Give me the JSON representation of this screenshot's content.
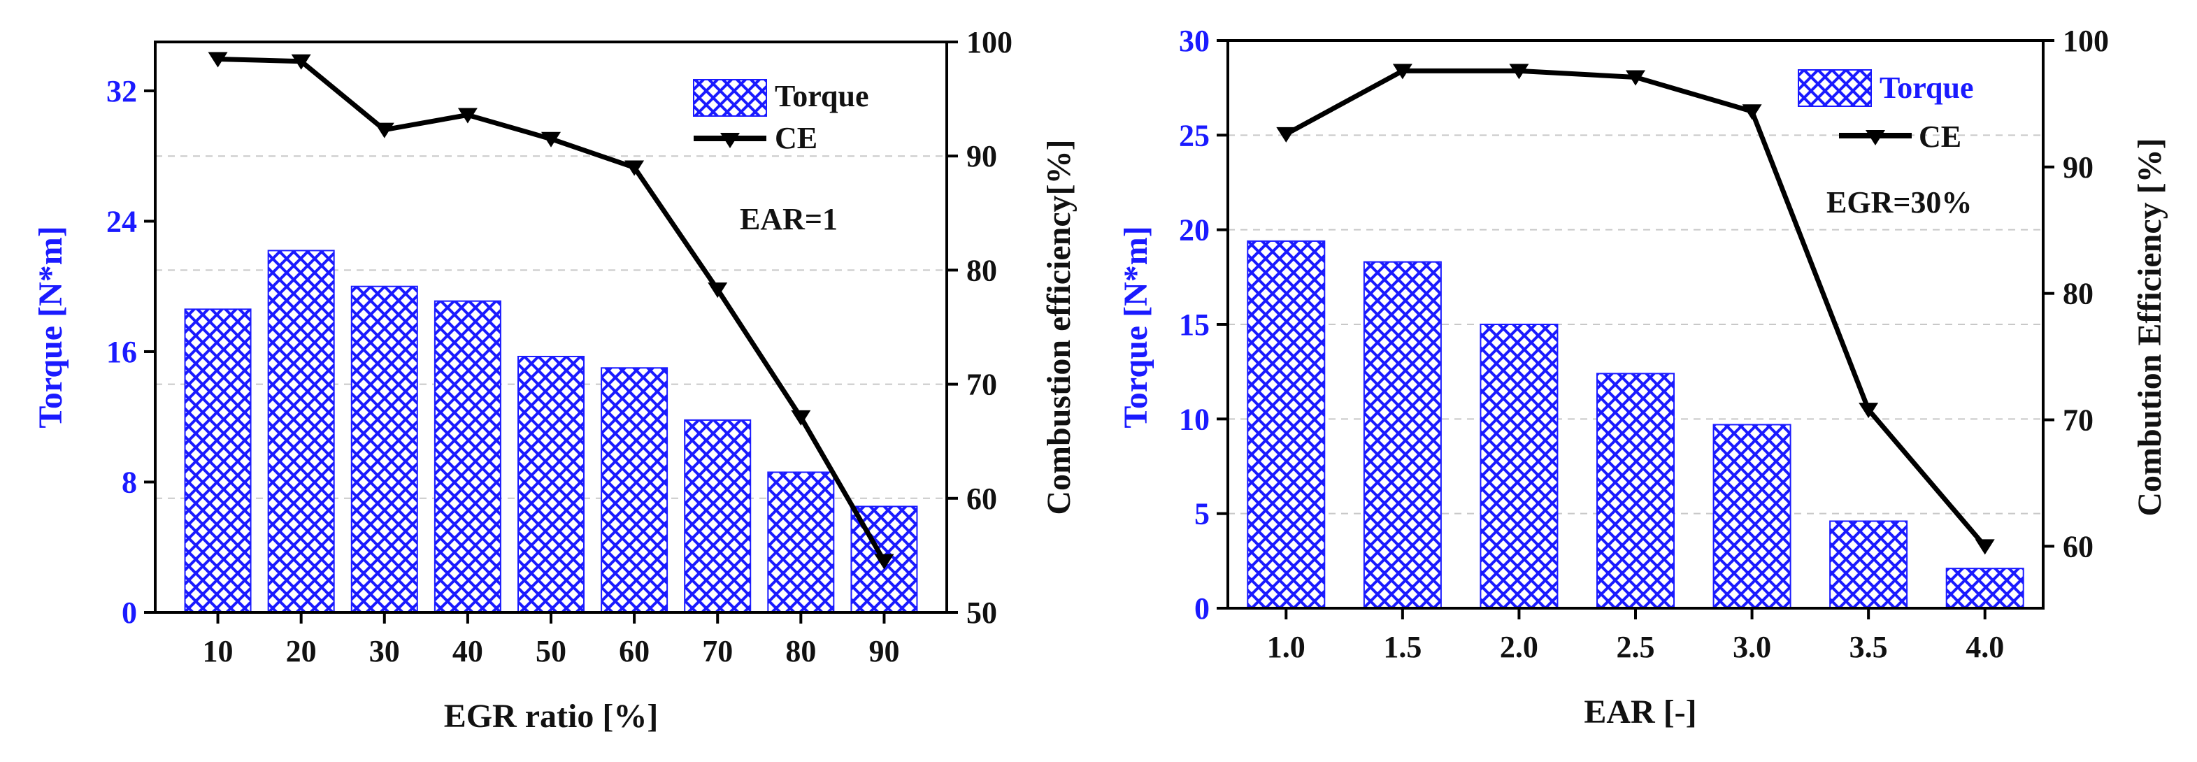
{
  "chart_data": [
    {
      "type": "bar",
      "combo": "bar+line, dual y-axis",
      "xlabel": "EGR ratio [%]",
      "ylabel_left": "Torque [N*m]",
      "ylabel_right": "Combustion efficiency[%]",
      "annotation": "EAR=1",
      "categories": [
        "10",
        "20",
        "30",
        "40",
        "50",
        "60",
        "70",
        "80",
        "90"
      ],
      "ylim_left": [
        0,
        35
      ],
      "yticks_left": [
        "0",
        "8",
        "16",
        "24",
        "32"
      ],
      "ylim_right": [
        50,
        100
      ],
      "yticks_right": [
        "50",
        "60",
        "70",
        "80",
        "90",
        "100"
      ],
      "grid": "horizontal dashed (right axis)",
      "legend_position": "top-right",
      "series": [
        {
          "name": "Torque",
          "axis": "left",
          "kind": "bar",
          "color": "#1a1aff",
          "values": [
            18.6,
            22.2,
            20.0,
            19.1,
            15.7,
            15.0,
            11.8,
            8.6,
            6.5
          ]
        },
        {
          "name": "CE",
          "axis": "right",
          "kind": "line",
          "color": "#000000",
          "values": [
            98.5,
            98.3,
            92.3,
            93.6,
            91.5,
            89.0,
            78.3,
            67.1,
            54.5
          ]
        }
      ]
    },
    {
      "type": "bar",
      "combo": "bar+line, dual y-axis",
      "xlabel": "EAR [-]",
      "ylabel_left": "Torque [N*m]",
      "ylabel_right": "Combution Efficiency [%]",
      "annotation": "EGR=30%",
      "categories": [
        "1.0",
        "1.5",
        "2.0",
        "2.5",
        "3.0",
        "3.5",
        "4.0"
      ],
      "ylim_left": [
        0,
        30
      ],
      "yticks_left": [
        "0",
        "5",
        "10",
        "15",
        "20",
        "25",
        "30"
      ],
      "ylim_right": [
        55.1,
        100
      ],
      "yticks_right": [
        "60",
        "70",
        "80",
        "90",
        "100"
      ],
      "grid": "horizontal dashed (left axis)",
      "legend_position": "top-right",
      "series": [
        {
          "name": "Torque",
          "axis": "left",
          "kind": "bar",
          "color": "#1a1aff",
          "values": [
            19.4,
            18.3,
            15.0,
            12.4,
            9.7,
            4.6,
            2.1
          ]
        },
        {
          "name": "CE",
          "axis": "right",
          "kind": "line",
          "color": "#000000",
          "values": [
            92.6,
            97.6,
            97.6,
            97.1,
            94.4,
            70.8,
            60.0
          ]
        }
      ]
    }
  ]
}
